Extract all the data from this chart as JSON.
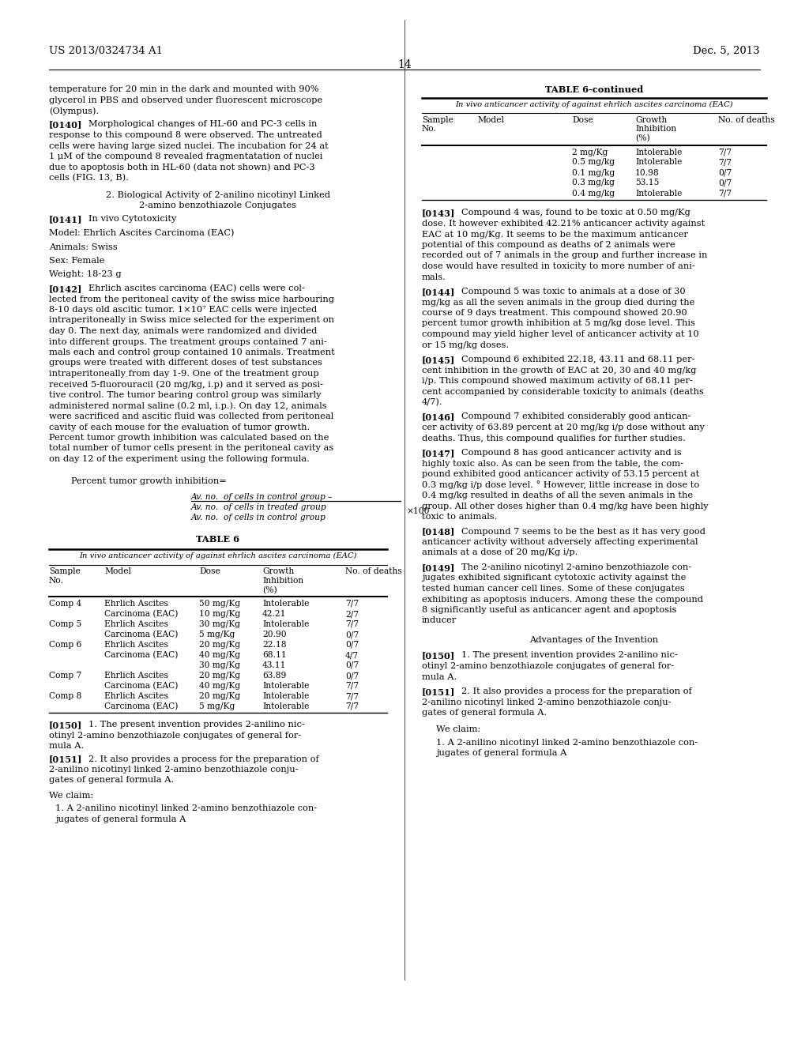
{
  "page_number": "14",
  "header_left": "US 2013/0324734 A1",
  "header_right": "Dec. 5, 2013",
  "bg_color": "#ffffff",
  "text_color": "#000000",
  "font_size": 8.2,
  "table6_continued_data": [
    [
      "2 mg/Kg",
      "Intolerable",
      "7/7"
    ],
    [
      "0.5 mg/kg",
      "Intolerable",
      "7/7"
    ],
    [
      "0.1 mg/kg",
      "10.98",
      "0/7"
    ],
    [
      "0.3 mg/kg",
      "53.15",
      "0/7"
    ],
    [
      "0.4 mg/kg",
      "Intolerable",
      "7/7"
    ]
  ],
  "table6_data": [
    [
      "Comp 4",
      "Ehrlich Ascites",
      "50 mg/Kg",
      "Intolerable",
      "7/7"
    ],
    [
      "",
      "Carcinoma (EAC)",
      "10 mg/Kg",
      "42.21",
      "2/7"
    ],
    [
      "Comp 5",
      "Ehrlich Ascites",
      "30 mg/Kg",
      "Intolerable",
      "7/7"
    ],
    [
      "",
      "Carcinoma (EAC)",
      "5 mg/Kg",
      "20.90",
      "0/7"
    ],
    [
      "Comp 6",
      "Ehrlich Ascites",
      "20 mg/Kg",
      "22.18",
      "0/7"
    ],
    [
      "",
      "Carcinoma (EAC)",
      "40 mg/Kg",
      "68.11",
      "4/7"
    ],
    [
      "",
      "",
      "30 mg/Kg",
      "43.11",
      "0/7"
    ],
    [
      "Comp 7",
      "Ehrlich Ascites",
      "20 mg/Kg",
      "63.89",
      "0/7"
    ],
    [
      "",
      "Carcinoma (EAC)",
      "40 mg/Kg",
      "Intolerable",
      "7/7"
    ],
    [
      "Comp 8",
      "Ehrlich Ascites",
      "20 mg/Kg",
      "Intolerable",
      "7/7"
    ],
    [
      "",
      "Carcinoma (EAC)",
      "5 mg/Kg",
      "Intolerable",
      "7/7"
    ]
  ]
}
